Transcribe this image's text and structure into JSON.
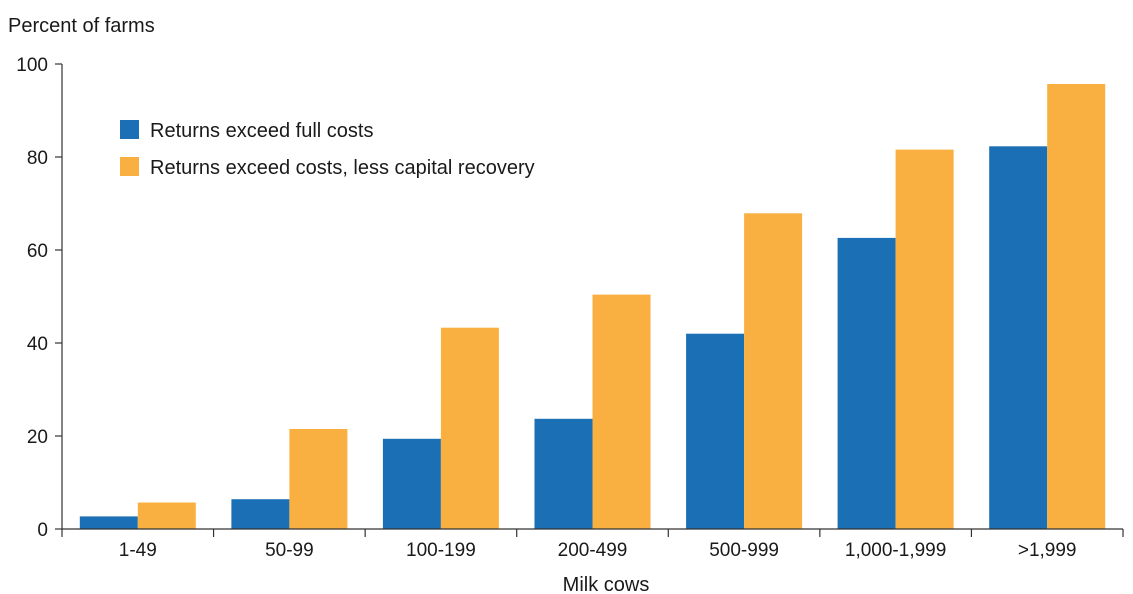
{
  "chart_data": {
    "type": "bar",
    "title": "",
    "ylabel": "Percent of farms",
    "xlabel": "Milk cows",
    "categories": [
      "1-49",
      "50-99",
      "100-199",
      "200-499",
      "500-999",
      "1,000-1,999",
      ">1,999"
    ],
    "series": [
      {
        "name": "Returns exceed full costs",
        "color": "#1a6fb5",
        "values": [
          2.7,
          6.4,
          19.4,
          23.7,
          42.0,
          62.6,
          82.3
        ]
      },
      {
        "name": "Returns exceed costs, less capital recovery",
        "color": "#f9b040",
        "values": [
          5.7,
          21.5,
          43.3,
          50.4,
          67.9,
          81.6,
          95.7
        ]
      }
    ],
    "ylim": [
      0,
      100
    ],
    "yticks": [
      0,
      20,
      40,
      60,
      80,
      100
    ],
    "grid": false,
    "legend": "top-left"
  }
}
